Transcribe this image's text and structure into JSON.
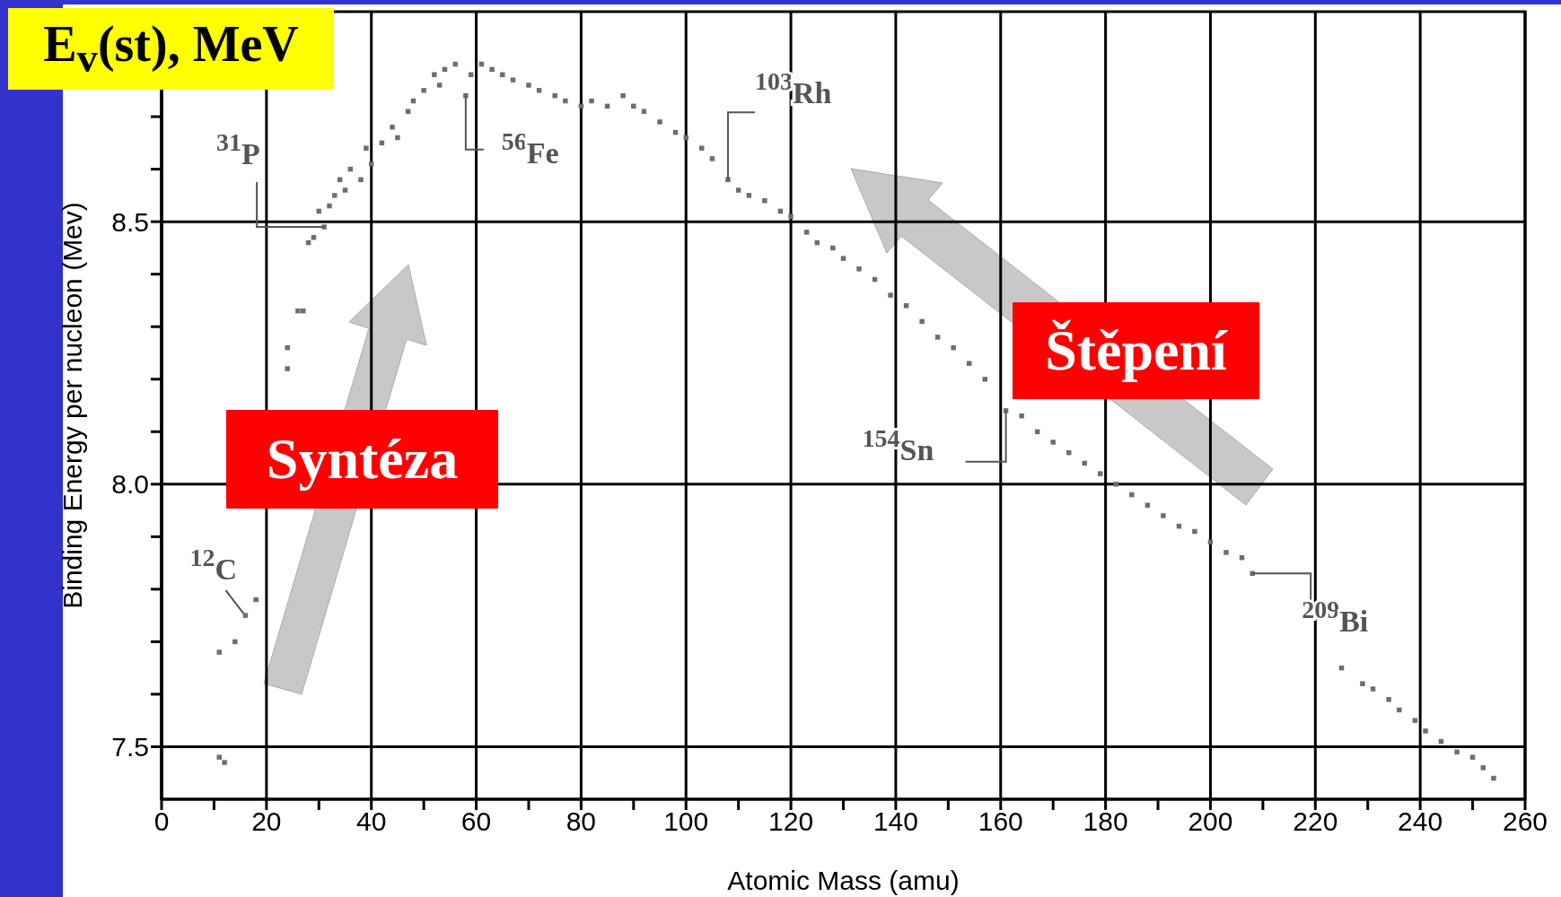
{
  "chart_data": {
    "type": "scatter",
    "title": "E$_{v}$(st), MeV",
    "xlabel": "Atomic Mass (amu)",
    "ylabel": "Binding Energy per nucleon (Mev)",
    "series": [
      {
        "color": "#6e6e6e",
        "x": [
          11,
          12,
          11,
          14,
          16,
          18,
          24,
          24,
          26,
          27,
          28,
          29,
          31,
          30,
          32,
          33,
          34,
          36,
          35,
          38,
          40,
          39,
          42,
          44,
          45,
          47,
          48,
          50,
          52,
          54,
          53,
          56,
          58,
          59,
          61,
          63,
          65,
          67,
          70,
          72,
          75,
          77,
          80,
          82,
          85,
          88,
          90,
          92,
          95,
          98,
          100,
          103,
          105,
          108,
          110,
          112,
          115,
          118,
          120,
          123,
          125,
          128,
          130,
          133,
          136,
          139,
          142,
          145,
          148,
          151,
          154,
          157,
          161,
          164,
          167,
          170,
          173,
          176,
          179,
          182,
          185,
          188,
          191,
          194,
          197,
          200,
          203,
          206,
          208,
          225,
          229,
          231,
          234,
          236,
          239,
          241,
          244,
          247,
          250,
          252,
          254
        ],
        "values": [
          7.48,
          7.47,
          7.68,
          7.7,
          7.75,
          7.78,
          8.22,
          8.26,
          8.33,
          8.33,
          8.46,
          8.47,
          8.49,
          8.52,
          8.53,
          8.55,
          8.58,
          8.6,
          8.56,
          8.58,
          8.61,
          8.64,
          8.65,
          8.68,
          8.66,
          8.71,
          8.73,
          8.75,
          8.78,
          8.79,
          8.76,
          8.8,
          8.74,
          8.78,
          8.8,
          8.79,
          8.78,
          8.77,
          8.76,
          8.75,
          8.74,
          8.73,
          8.72,
          8.73,
          8.72,
          8.74,
          8.72,
          8.71,
          8.69,
          8.67,
          8.66,
          8.64,
          8.62,
          8.58,
          8.56,
          8.55,
          8.54,
          8.52,
          8.51,
          8.48,
          8.46,
          8.45,
          8.43,
          8.41,
          8.39,
          8.36,
          8.34,
          8.31,
          8.28,
          8.26,
          8.23,
          8.2,
          8.14,
          8.13,
          8.1,
          8.08,
          8.06,
          8.04,
          8.02,
          8,
          7.98,
          7.96,
          7.94,
          7.92,
          7.91,
          7.89,
          7.87,
          7.86,
          7.83,
          7.65,
          7.62,
          7.61,
          7.59,
          7.57,
          7.55,
          7.53,
          7.51,
          7.49,
          7.48,
          7.46,
          7.44
        ]
      }
    ],
    "marker": "square",
    "xlim": [
      0,
      260
    ],
    "ylim": [
      7.4,
      8.9
    ],
    "xticks": [
      0,
      {
        "value": 10,
        "label": null
      },
      20,
      {
        "value": 30,
        "label": null
      },
      40,
      {
        "value": 50,
        "label": null
      },
      60,
      {
        "value": 70,
        "label": null
      },
      80,
      {
        "value": 90,
        "label": null
      },
      100,
      {
        "value": 110,
        "label": null
      },
      120,
      {
        "value": 130,
        "label": null
      },
      140,
      {
        "value": 150,
        "label": null
      },
      160,
      {
        "value": 170,
        "label": null
      },
      180,
      {
        "value": 190,
        "label": null
      },
      200,
      {
        "value": 210,
        "label": null
      },
      220,
      {
        "value": 230,
        "label": null
      },
      240,
      {
        "value": 250,
        "label": null
      },
      260
    ],
    "yticks": [
      7.5,
      {
        "value": 7.6,
        "label": null
      },
      {
        "value": 7.7,
        "label": null
      },
      {
        "value": 7.8,
        "label": null
      },
      {
        "value": 7.9,
        "label": null
      },
      {
        "value": 8,
        "label": "8.0"
      },
      {
        "value": 8.1,
        "label": null
      },
      {
        "value": 8.2,
        "label": null
      },
      {
        "value": 8.3,
        "label": null
      },
      {
        "value": 8.4,
        "label": null
      },
      8.5,
      {
        "value": 8.6,
        "label": null
      },
      {
        "value": 8.7,
        "label": null
      },
      {
        "value": 8.8,
        "label": null
      }
    ],
    "grid": true,
    "annotations": [
      {
        "text": "$^{12}$C",
        "x": 16,
        "y": 7.75
      },
      {
        "text": "$^{31}$P",
        "x": 31,
        "y": 8.49
      },
      {
        "text": "$^{56}$Fe",
        "x": 58,
        "y": 8.74
      },
      {
        "text": "$^{103}$Rh",
        "x": 108,
        "y": 8.58
      },
      {
        "text": "$^{154}$Sn",
        "x": 161,
        "y": 8.14
      },
      {
        "text": "$^{209}$Bi",
        "x": 208,
        "y": 7.83
      },
      "Syntéza",
      "Štěpení"
    ]
  }
}
